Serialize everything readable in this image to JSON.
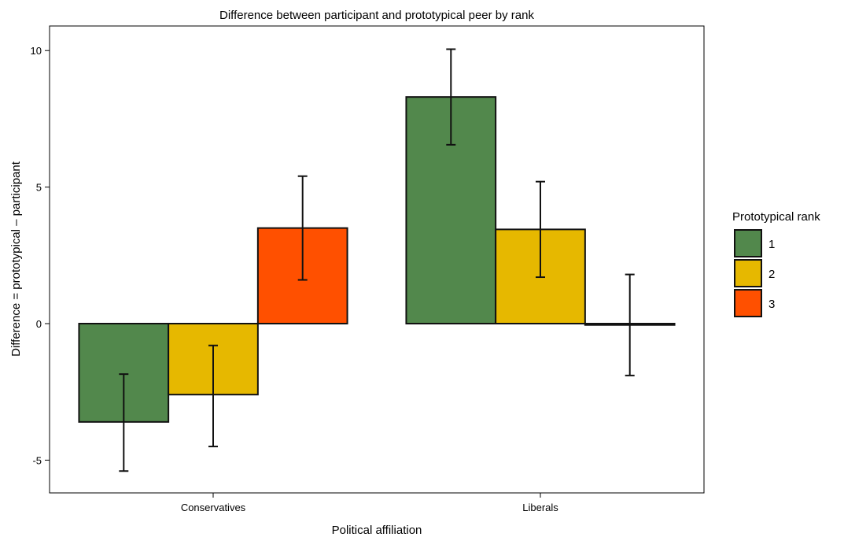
{
  "chart_data": {
    "type": "bar",
    "title": "Difference between participant and prototypical peer by rank",
    "xlabel": "Political affiliation",
    "ylabel": "Difference = prototypical – participant",
    "categories": [
      "Conservatives",
      "Liberals"
    ],
    "ylim": [
      -6.2,
      10.9
    ],
    "yticks": [
      {
        "value": 10,
        "label": "10"
      },
      {
        "value": 5,
        "label": "5"
      },
      {
        "value": 0,
        "label": "0"
      },
      {
        "value": -5,
        "label": "-5"
      }
    ],
    "grid": false,
    "legend": {
      "title": "Prototypical rank",
      "placement": "right"
    },
    "series": [
      {
        "name": "1",
        "color": "#52884c",
        "values": [
          -3.6,
          8.3
        ],
        "error_low": [
          -5.4,
          6.55
        ],
        "error_high": [
          -1.85,
          10.05
        ]
      },
      {
        "name": "2",
        "color": "#e6b800",
        "values": [
          -2.6,
          3.45
        ],
        "error_low": [
          -4.5,
          1.7
        ],
        "error_high": [
          -0.8,
          5.2
        ]
      },
      {
        "name": "3",
        "color": "#ff5000",
        "values": [
          3.5,
          -0.05
        ],
        "error_low": [
          1.6,
          -1.9
        ],
        "error_high": [
          5.4,
          1.8
        ]
      }
    ]
  }
}
